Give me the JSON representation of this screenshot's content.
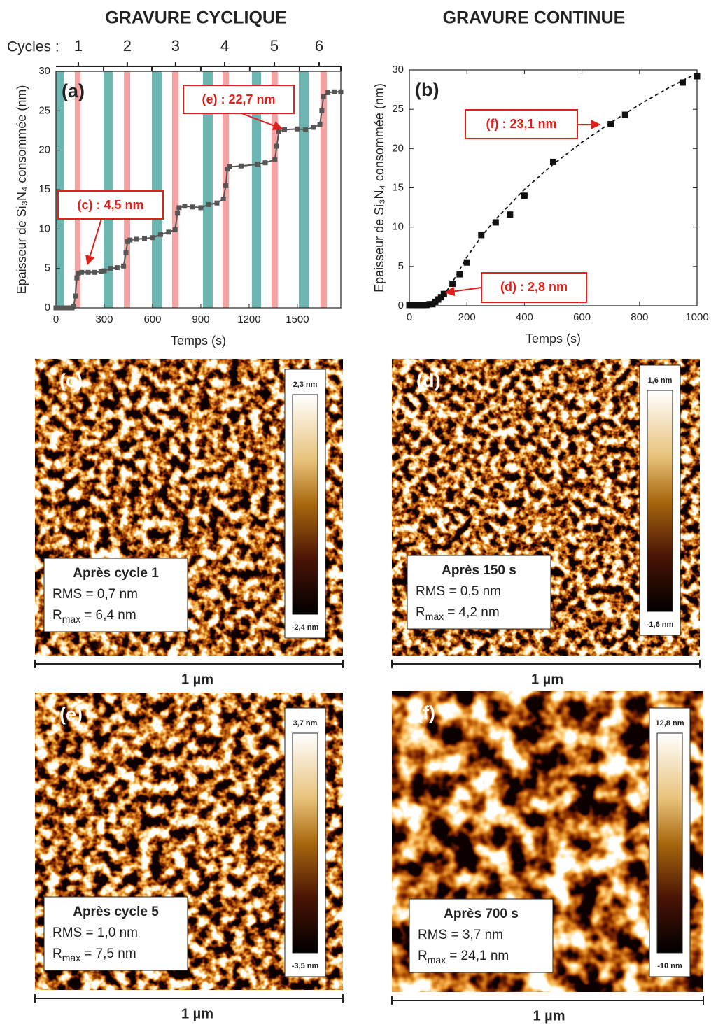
{
  "chart_data": [
    {
      "type": "line",
      "title": "GRAVURE CYCLIQUE",
      "panel_label": "(a)",
      "x_label": "Temps (s)",
      "y_label": "Epaisseur de Si₃N₄ consommée (nm)",
      "cycle_axis_label": "Cycles :",
      "cycles": [
        "1",
        "2",
        "3",
        "4",
        "5",
        "6"
      ],
      "cycle_centers": [
        139,
        443,
        743,
        1048,
        1357,
        1635
      ],
      "cycle_bounds": [
        296,
        596,
        900,
        1204,
        1513,
        1770
      ],
      "bands": [
        {
          "color": "#6db5b0",
          "ranges": [
            [
              0,
              52
            ],
            [
              296,
              352
            ],
            [
              596,
              657
            ],
            [
              913,
              974
            ],
            [
              1217,
              1274
            ],
            [
              1509,
              1570
            ]
          ]
        },
        {
          "color": "#f4a3a3",
          "ranges": [
            [
              117,
              152
            ],
            [
              422,
              461
            ],
            [
              722,
              761
            ],
            [
              1035,
              1074
            ],
            [
              1339,
              1378
            ],
            [
              1643,
              1683
            ]
          ]
        }
      ],
      "series": [
        {
          "color": "#555555",
          "marker": "square",
          "x": [
            0,
            20,
            40,
            60,
            80,
            100,
            110,
            120,
            130,
            140,
            160,
            200,
            240,
            280,
            300,
            340,
            380,
            420,
            435,
            445,
            460,
            500,
            550,
            600,
            650,
            700,
            740,
            755,
            765,
            800,
            850,
            900,
            950,
            1000,
            1040,
            1055,
            1065,
            1080,
            1150,
            1250,
            1300,
            1360,
            1372,
            1385,
            1420,
            1500,
            1550,
            1600,
            1640,
            1652,
            1662,
            1690,
            1730,
            1770
          ],
          "values": [
            0,
            0,
            0,
            0,
            0,
            0,
            0.2,
            1.5,
            3.8,
            4.4,
            4.5,
            4.5,
            4.5,
            4.6,
            4.7,
            5.0,
            5.1,
            5.3,
            7.0,
            8.4,
            8.6,
            8.7,
            8.8,
            8.9,
            9.3,
            9.6,
            9.9,
            12.0,
            12.7,
            12.9,
            12.8,
            12.7,
            13.1,
            13.3,
            13.8,
            15.5,
            17.6,
            17.9,
            18.0,
            18.2,
            18.4,
            18.8,
            20.5,
            22.4,
            22.6,
            22.7,
            22.6,
            22.9,
            23.3,
            25.0,
            26.8,
            27.3,
            27.4,
            27.4
          ]
        }
      ],
      "annotations": [
        "(c) : 4,5 nm",
        "(e) : 22,7 nm"
      ],
      "xlim": [
        0,
        1770
      ],
      "xticks": [
        0,
        300,
        600,
        900,
        1200,
        1500
      ],
      "ylim": [
        0,
        30
      ],
      "yticks": [
        0,
        5,
        10,
        15,
        20,
        25,
        30
      ]
    },
    {
      "type": "scatter",
      "title": "GRAVURE CONTINUE",
      "panel_label": "(b)",
      "x_label": "Temps (s)",
      "y_label": "Epaisseur de Si₃N₄ consommée (nm)",
      "series": [
        {
          "color": "#111111",
          "marker": "square",
          "x": [
            0,
            10,
            20,
            30,
            40,
            50,
            60,
            70,
            80,
            90,
            100,
            110,
            120,
            150,
            175,
            200,
            250,
            300,
            350,
            400,
            500,
            700,
            750,
            950,
            1000
          ],
          "values": [
            0.1,
            0.1,
            0.1,
            0.1,
            0.1,
            0.1,
            0.1,
            0.2,
            0.2,
            0.5,
            0.8,
            1.1,
            1.5,
            2.8,
            4.0,
            5.5,
            9.0,
            10.6,
            11.6,
            14.0,
            18.3,
            23.1,
            24.3,
            28.4,
            29.2
          ]
        },
        {
          "color": "#111111",
          "line_style": "dashed",
          "x": [
            0,
            80,
            100,
            125,
            150,
            200,
            250,
            300,
            400,
            500,
            600,
            700,
            800,
            900,
            1000
          ],
          "values": [
            0,
            0,
            0.4,
            1.6,
            3.0,
            6.2,
            8.8,
            11.0,
            14.8,
            18.0,
            20.8,
            23.3,
            25.6,
            27.7,
            29.6
          ]
        }
      ],
      "annotations": [
        "(f) : 23,1 nm",
        "(d) : 2,8 nm"
      ],
      "xlim": [
        0,
        1000
      ],
      "xticks": [
        0,
        200,
        400,
        600,
        800,
        1000
      ],
      "ylim": [
        0,
        30
      ],
      "yticks": [
        0,
        5,
        10,
        15,
        20,
        25,
        30
      ]
    }
  ],
  "afm_panels": [
    {
      "label": "(c)",
      "colorbar_max": "2,3 nm",
      "colorbar_min": "-2,4 nm",
      "caption": "Après cycle 1",
      "rms": "RMS = 0,7 nm",
      "rmax_symbol": "R",
      "rmax_sub": "max",
      "rmax_value": "= 6,4 nm",
      "scale": "1 µm"
    },
    {
      "label": "(d)",
      "colorbar_max": "1,6 nm",
      "colorbar_min": "-1,6 nm",
      "caption": "Après 150 s",
      "rms": "RMS = 0,5 nm",
      "rmax_symbol": "R",
      "rmax_sub": "max",
      "rmax_value": "= 4,2 nm",
      "scale": "1 µm"
    },
    {
      "label": "(e)",
      "colorbar_max": "3,7 nm",
      "colorbar_min": "-3,5 nm",
      "caption": "Après cycle 5",
      "rms": "RMS = 1,0 nm",
      "rmax_symbol": "R",
      "rmax_sub": "max",
      "rmax_value": "= 7,5 nm",
      "scale": "1 µm"
    },
    {
      "label": "(f)",
      "colorbar_max": "12,8 nm",
      "colorbar_min": "-10 nm",
      "caption": "Après 700 s",
      "rms": "RMS = 3,7 nm",
      "rmax_symbol": "R",
      "rmax_sub": "max",
      "rmax_value": "= 24,1 nm",
      "scale": "1 µm"
    }
  ]
}
